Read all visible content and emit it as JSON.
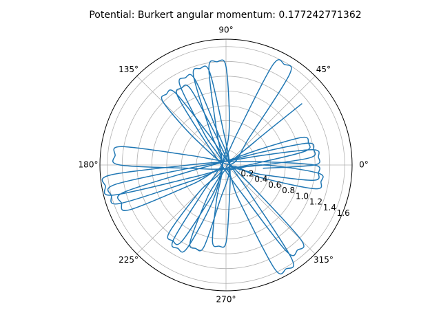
{
  "chart_data": {
    "type": "polar_line",
    "title": "Potential: Burkert angular momentum: 0.177242771362",
    "ylim": [
      0,
      1.7
    ],
    "yticks": [
      {
        "value": 0.2,
        "label": "0.2"
      },
      {
        "value": 0.4,
        "label": "0.4"
      },
      {
        "value": 0.6,
        "label": "0.6"
      },
      {
        "value": 0.8,
        "label": "0.8"
      },
      {
        "value": 1.0,
        "label": "1.0"
      },
      {
        "value": 1.2,
        "label": "1.2"
      },
      {
        "value": 1.4,
        "label": "1.4"
      },
      {
        "value": 1.6,
        "label": "1.6"
      }
    ],
    "xticks": [
      {
        "value": 0,
        "label": "0°"
      },
      {
        "value": 45,
        "label": "45°"
      },
      {
        "value": 90,
        "label": "90°"
      },
      {
        "value": 135,
        "label": "135°"
      },
      {
        "value": 180,
        "label": "180°"
      },
      {
        "value": 225,
        "label": "225°"
      },
      {
        "value": 270,
        "label": "270°"
      },
      {
        "value": 315,
        "label": "315°"
      }
    ],
    "grid": true,
    "series": [
      {
        "color": "#1f77b4",
        "x": [
          355,
          0,
          5,
          10,
          15,
          100,
          180,
          185,
          190,
          195,
          200,
          290,
          0,
          5,
          10,
          15,
          20,
          110,
          185,
          190,
          195,
          200,
          205,
          295,
          345,
          350,
          355,
          0,
          5,
          90,
          165,
          170,
          175,
          180,
          185,
          270,
          5,
          10,
          15,
          20,
          25,
          110,
          190,
          195,
          200,
          205,
          210,
          250,
          290,
          295,
          300,
          305,
          310,
          30,
          110,
          115,
          120,
          125,
          130,
          220,
          300,
          305,
          310,
          315,
          320,
          45,
          120,
          125,
          130,
          135,
          140,
          10,
          50,
          55,
          60,
          65,
          70,
          160,
          230,
          235,
          240,
          245,
          250,
          170,
          85,
          90,
          95,
          100,
          105,
          190,
          255,
          260,
          265,
          270,
          275,
          0,
          95,
          100,
          105,
          110,
          115,
          200,
          240,
          245,
          250,
          255,
          260,
          340,
          105,
          110,
          115,
          120,
          125,
          210,
          225,
          230,
          235,
          240,
          245,
          330,
          340,
          345,
          350,
          355,
          0,
          270,
          39,
          39
        ],
        "values": [
          0.5,
          1.19,
          1.25,
          1.19,
          0.5,
          0.05,
          0.5,
          1.57,
          1.65,
          1.57,
          0.5,
          0.05,
          0.5,
          1.14,
          1.2,
          1.14,
          0.5,
          0.05,
          0.5,
          1.52,
          1.6,
          1.52,
          0.5,
          0.05,
          0.5,
          1.19,
          1.25,
          1.19,
          0.5,
          0.05,
          0.5,
          1.43,
          1.5,
          1.43,
          0.5,
          0.05,
          0.5,
          1.09,
          1.15,
          1.09,
          0.5,
          0.05,
          0.5,
          1.43,
          1.5,
          1.43,
          0.5,
          0.05,
          0.5,
          1.54,
          1.62,
          1.54,
          0.5,
          0.05,
          0.5,
          1.14,
          1.2,
          1.14,
          0.5,
          0.05,
          0.5,
          1.43,
          1.5,
          1.43,
          0.5,
          0.05,
          0.5,
          1.19,
          1.25,
          1.19,
          0.5,
          0.05,
          0.5,
          1.49,
          1.57,
          1.49,
          0.5,
          0.05,
          0.5,
          1.24,
          1.3,
          1.24,
          0.5,
          0.05,
          0.5,
          1.33,
          1.4,
          1.33,
          0.5,
          0.05,
          0.5,
          1.05,
          1.1,
          1.05,
          0.5,
          0.05,
          0.5,
          1.28,
          1.35,
          1.28,
          0.5,
          0.05,
          0.5,
          1.14,
          1.2,
          1.14,
          0.5,
          0.05,
          0.5,
          1.24,
          1.3,
          1.24,
          0.5,
          0.05,
          0.5,
          1.19,
          1.25,
          1.19,
          0.5,
          0.05,
          0.5,
          1.24,
          1.3,
          1.24,
          0.5,
          0.05,
          0.5,
          1.32
        ]
      }
    ]
  }
}
